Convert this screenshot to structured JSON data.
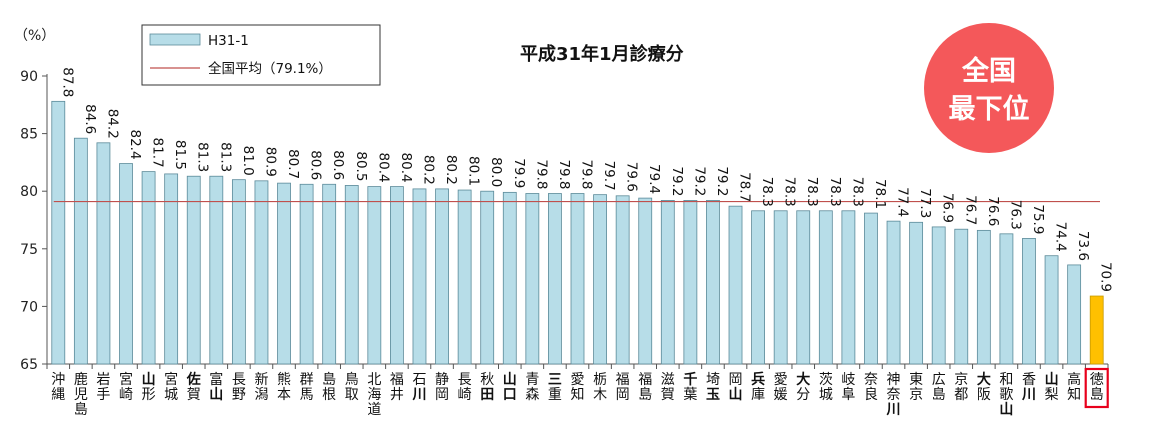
{
  "chart_data": {
    "type": "bar",
    "title": "平成31年1月診療分",
    "ylabel": "（%）",
    "ylim": [
      65,
      90
    ],
    "yticks": [
      65,
      70,
      75,
      80,
      85,
      90
    ],
    "grid": false,
    "legend_position": "top-left",
    "series": [
      {
        "name": "H31-1",
        "color": "#b7dde8",
        "values": [
          87.8,
          84.6,
          84.2,
          82.4,
          81.7,
          81.5,
          81.3,
          81.3,
          81.0,
          80.9,
          80.7,
          80.6,
          80.6,
          80.5,
          80.4,
          80.4,
          80.2,
          80.2,
          80.1,
          80.0,
          79.9,
          79.8,
          79.8,
          79.8,
          79.7,
          79.6,
          79.4,
          79.2,
          79.2,
          79.2,
          78.7,
          78.3,
          78.3,
          78.3,
          78.3,
          78.3,
          78.1,
          77.4,
          77.3,
          76.9,
          76.7,
          76.6,
          76.3,
          75.9,
          74.4,
          73.6,
          70.9
        ]
      }
    ],
    "categories": [
      "沖縄",
      "鹿児島",
      "岩手",
      "宮崎",
      "山形",
      "宮城",
      "佐賀",
      "富山",
      "長野",
      "新潟",
      "熊本",
      "群馬",
      "島根",
      "鳥取",
      "北海道",
      "福井",
      "石川",
      "静岡",
      "長崎",
      "秋田",
      "山口",
      "青森",
      "三重",
      "愛知",
      "栃木",
      "福岡",
      "福島",
      "滋賀",
      "千葉",
      "埼玉",
      "岡山",
      "兵庫",
      "愛媛",
      "大分",
      "茨城",
      "岐阜",
      "奈良",
      "神奈川",
      "東京",
      "広島",
      "京都",
      "大阪",
      "和歌山",
      "香川",
      "山梨",
      "高知",
      "徳島"
    ],
    "bold_chars": [
      [],
      [],
      [],
      [],
      [
        "山"
      ],
      [],
      [
        "佐"
      ],
      [
        "山"
      ],
      [],
      [],
      [],
      [],
      [],
      [],
      [],
      [],
      [
        "川"
      ],
      [],
      [],
      [
        "田"
      ],
      [
        "山",
        "口"
      ],
      [],
      [
        "三"
      ],
      [],
      [],
      [],
      [],
      [],
      [
        "千"
      ],
      [
        "玉"
      ],
      [
        "山"
      ],
      [
        "兵"
      ],
      [],
      [
        "大"
      ],
      [],
      [],
      [],
      [
        "川"
      ],
      [],
      [],
      [],
      [
        "大"
      ],
      [
        "山"
      ],
      [
        "川"
      ],
      [
        "山"
      ],
      [],
      []
    ],
    "reference_line": {
      "label": "全国平均（79.1%）",
      "value": 79.1,
      "color": "#c0504d"
    },
    "highlight": {
      "category": "徳島",
      "color": "#ffc000",
      "border": "#e8001c"
    }
  },
  "badge": {
    "lines": [
      "全国",
      "最下位"
    ],
    "color": "#f4585a"
  }
}
